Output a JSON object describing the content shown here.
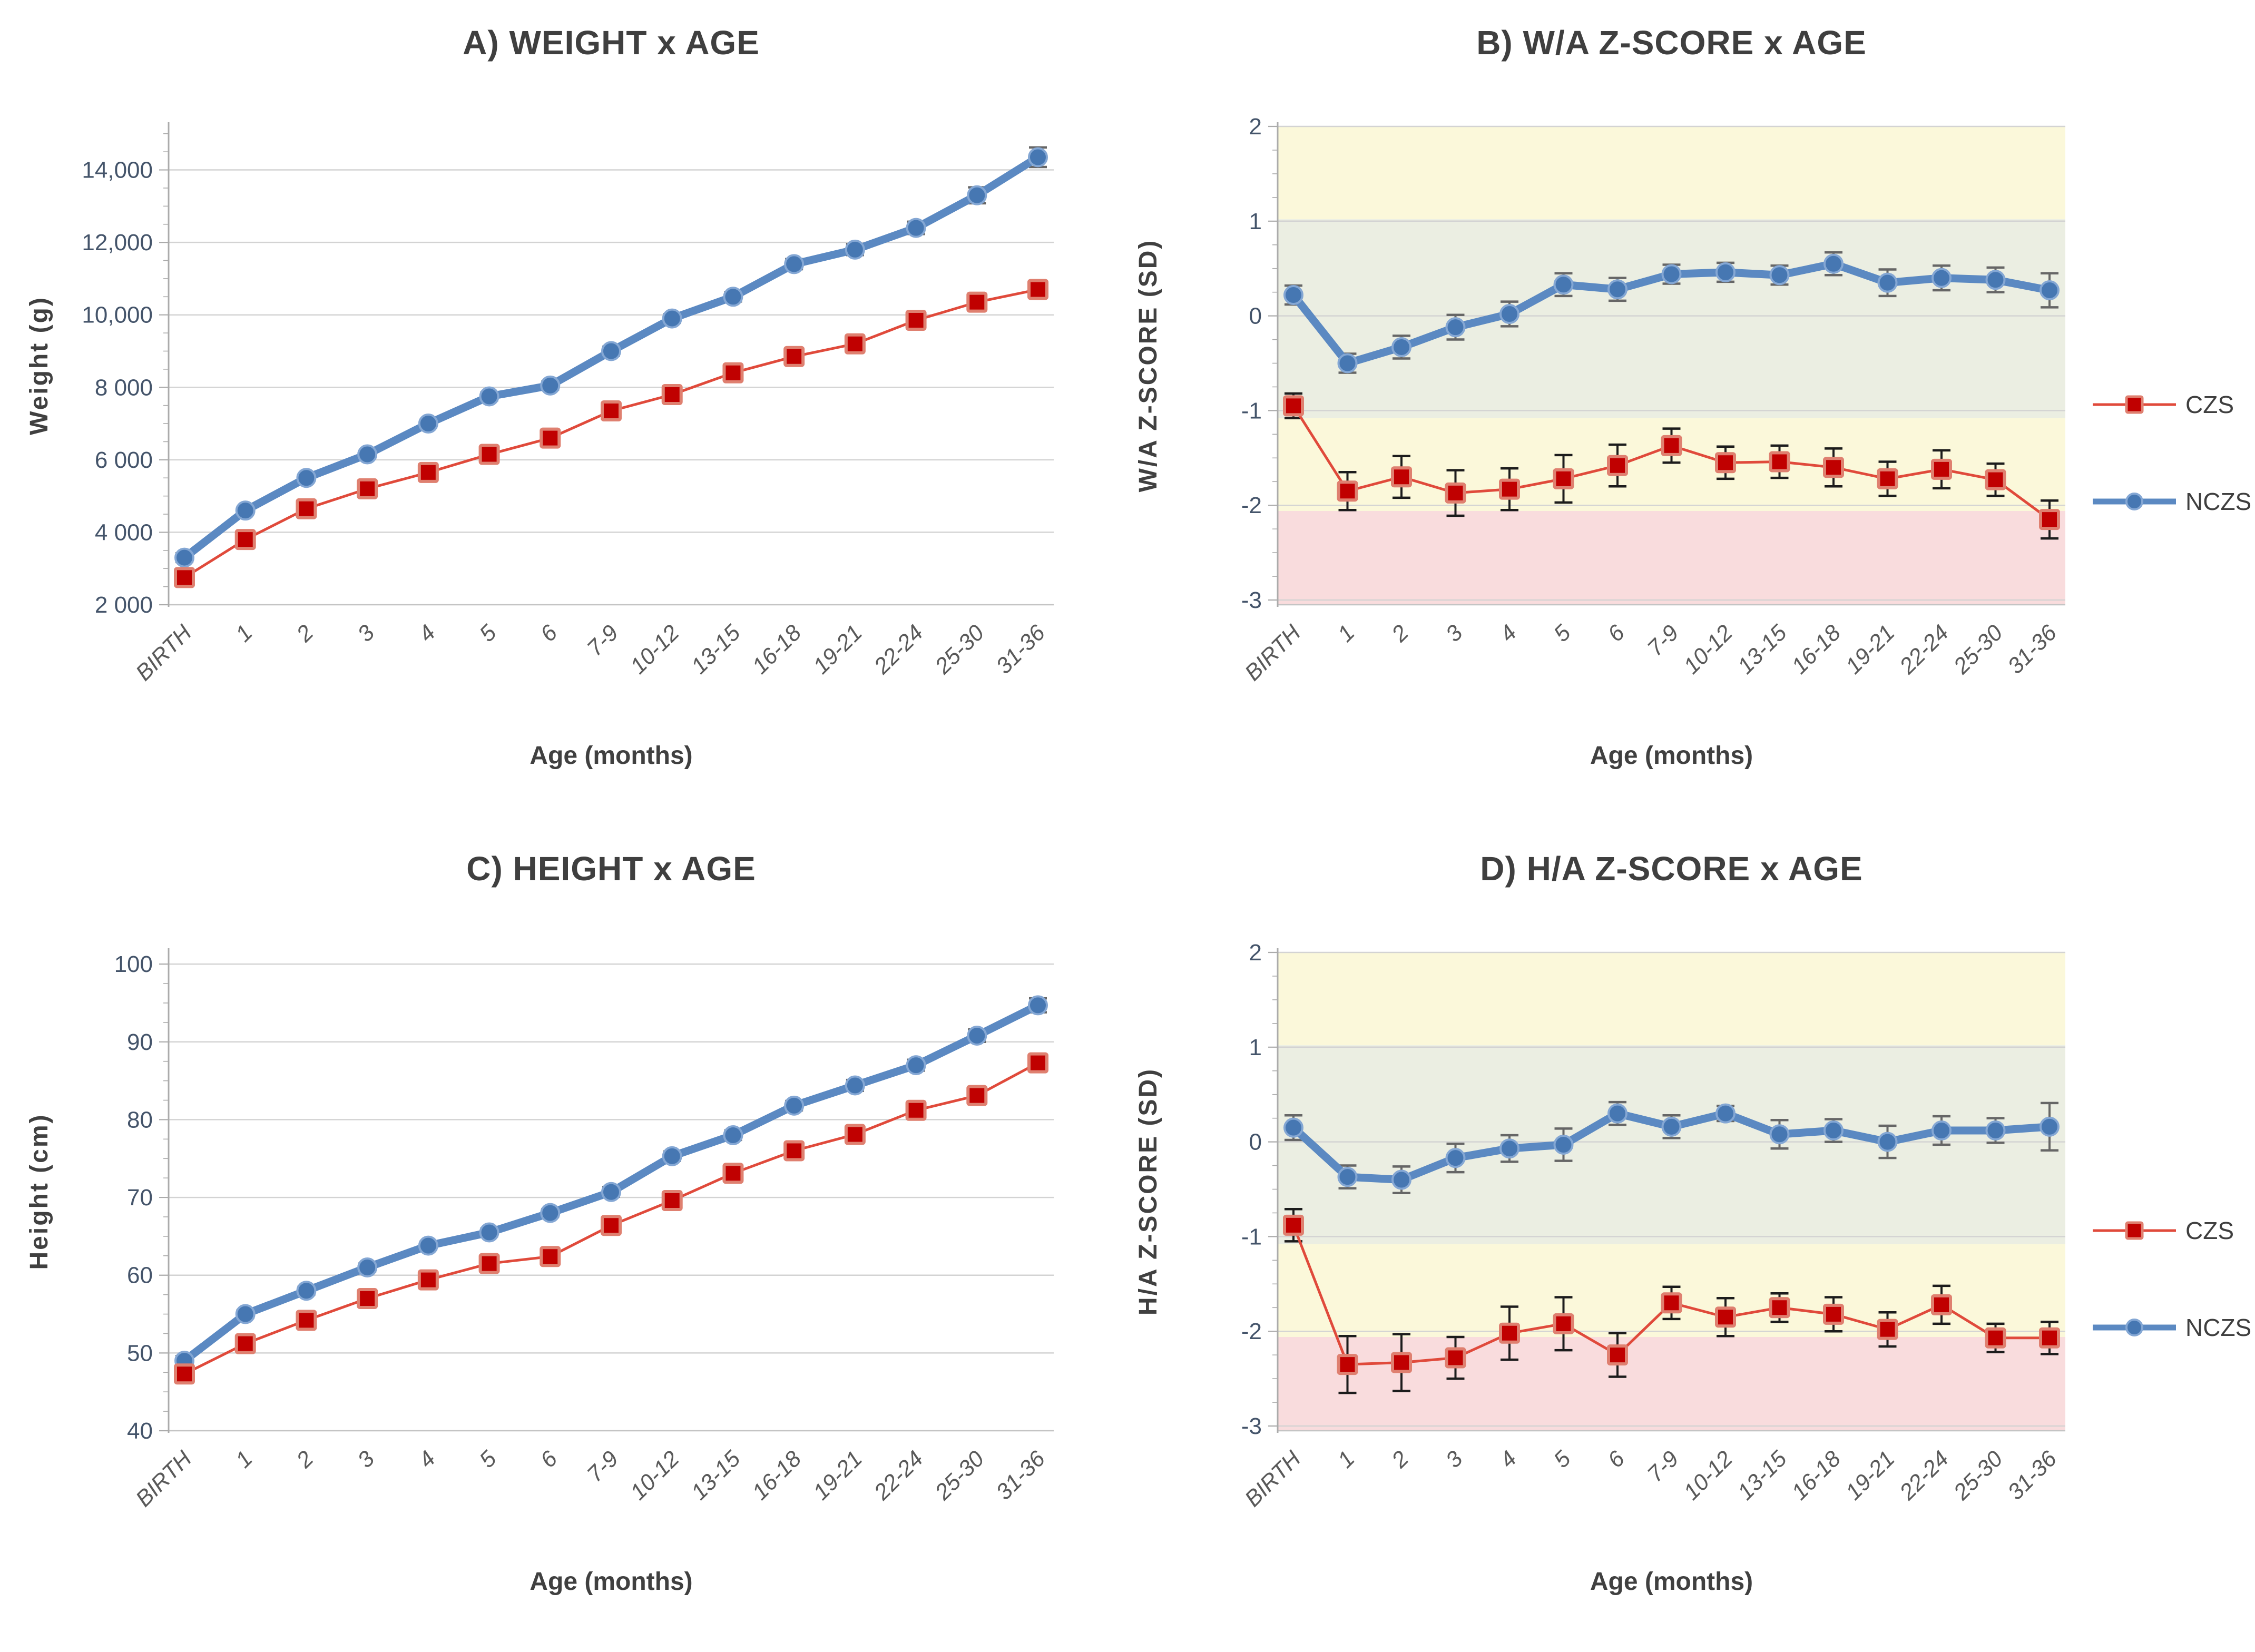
{
  "figure": {
    "legend": {
      "czs_label": "CZS",
      "nczs_label": "NCZS"
    },
    "colors": {
      "czs_line": "#E04A3B",
      "czs_fill": "#C00000",
      "czs_edge": "#DF8070",
      "nczs_line": "#5B89C2",
      "nczs_fill": "#4677B2",
      "nczs_edge": "#84A7D4",
      "czs_error": "#1C1C1C",
      "nczs_error": "#666666",
      "grid": "#D3D3D3",
      "axis": "#ABABAB",
      "title_text": "#3F3F3F",
      "y_tick_text": "#44546A",
      "x_tick_text": "#595959",
      "axis_title_text": "#404040",
      "band_yellow": "#FBF8DA",
      "band_green": "#EBEEE2",
      "band_pink": "#F9DCDD"
    }
  },
  "chart_data": [
    {
      "id": "A",
      "type": "line",
      "title": "A) WEIGHT x AGE",
      "xlabel": "Age (months)",
      "ylabel": "Weight (g)",
      "categories": [
        "BIRTH",
        "1",
        "2",
        "3",
        "4",
        "5",
        "6",
        "7-9",
        "10-12",
        "13-15",
        "16-18",
        "19-21",
        "22-24",
        "25-30",
        "31-36"
      ],
      "ylim": [
        2000,
        15200
      ],
      "y_tick_values": [
        2000,
        4000,
        6000,
        8000,
        10000,
        12000,
        14000
      ],
      "y_tick_labels": [
        "2 000",
        "4 000",
        "6 000",
        "8 000",
        "10,000",
        "12,000",
        "14,000"
      ],
      "grid_values": [
        4000,
        6000,
        8000,
        10000,
        12000,
        14000
      ],
      "minor_tick_step": 500,
      "bands": [],
      "legend_visible": false,
      "series": [
        {
          "name": "NCZS",
          "marker": "circle",
          "values": [
            3300,
            4600,
            5500,
            6150,
            7000,
            7750,
            8050,
            9000,
            9900,
            10500,
            11400,
            11800,
            12400,
            13300,
            14350
          ],
          "errors": [
            120,
            90,
            90,
            90,
            100,
            110,
            110,
            120,
            120,
            130,
            140,
            150,
            170,
            220,
            270
          ]
        },
        {
          "name": "CZS",
          "marker": "square",
          "values": [
            2750,
            3800,
            4650,
            5200,
            5650,
            6150,
            6600,
            7350,
            7800,
            8400,
            8850,
            9200,
            9850,
            10350,
            10700
          ],
          "errors": [
            60,
            70,
            80,
            80,
            80,
            90,
            90,
            90,
            100,
            100,
            110,
            110,
            120,
            130,
            140
          ]
        }
      ]
    },
    {
      "id": "B",
      "type": "line",
      "title": "B) W/A Z-SCORE x AGE",
      "xlabel": "Age (months)",
      "ylabel": "W/A Z-SCORE (SD)",
      "categories": [
        "BIRTH",
        "1",
        "2",
        "3",
        "4",
        "5",
        "6",
        "7-9",
        "10-12",
        "13-15",
        "16-18",
        "19-21",
        "22-24",
        "25-30",
        "31-36"
      ],
      "ylim": [
        -3.05,
        2.0
      ],
      "y_tick_values": [
        2,
        1,
        0,
        -1,
        -2,
        -3
      ],
      "y_tick_labels": [
        "2",
        "1",
        "0",
        "-1",
        "-2",
        "-3"
      ],
      "grid_values": [
        2,
        1,
        0,
        -1,
        -2,
        -3
      ],
      "minor_tick_step": 0.25,
      "bands": [
        {
          "from": 1.02,
          "to": 2.0,
          "color": "#FBF8DA"
        },
        {
          "from": -1.08,
          "to": 1.02,
          "color": "#EBEEE2"
        },
        {
          "from": -2.06,
          "to": -1.08,
          "color": "#FBF8DA"
        },
        {
          "from": -3.05,
          "to": -2.06,
          "color": "#F9DCDD"
        }
      ],
      "legend_visible": true,
      "series": [
        {
          "name": "NCZS",
          "marker": "circle",
          "values": [
            0.22,
            -0.5,
            -0.33,
            -0.12,
            0.02,
            0.33,
            0.28,
            0.44,
            0.46,
            0.43,
            0.55,
            0.35,
            0.4,
            0.38,
            0.27
          ],
          "errors": [
            0.1,
            0.1,
            0.12,
            0.13,
            0.13,
            0.12,
            0.12,
            0.1,
            0.1,
            0.1,
            0.12,
            0.14,
            0.13,
            0.13,
            0.18
          ]
        },
        {
          "name": "CZS",
          "marker": "square",
          "values": [
            -0.95,
            -1.85,
            -1.7,
            -1.87,
            -1.83,
            -1.72,
            -1.58,
            -1.37,
            -1.55,
            -1.54,
            -1.6,
            -1.72,
            -1.62,
            -1.73,
            -2.15
          ],
          "errors": [
            0.13,
            0.2,
            0.22,
            0.24,
            0.22,
            0.25,
            0.22,
            0.18,
            0.17,
            0.17,
            0.2,
            0.18,
            0.2,
            0.17,
            0.2
          ]
        }
      ]
    },
    {
      "id": "C",
      "type": "line",
      "title": "C) HEIGHT x AGE",
      "xlabel": "Age (months)",
      "ylabel": "Height (cm)",
      "categories": [
        "BIRTH",
        "1",
        "2",
        "3",
        "4",
        "5",
        "6",
        "7-9",
        "10-12",
        "13-15",
        "16-18",
        "19-21",
        "22-24",
        "25-30",
        "31-36"
      ],
      "ylim": [
        40,
        101.5
      ],
      "y_tick_values": [
        40,
        50,
        60,
        70,
        80,
        90,
        100
      ],
      "y_tick_labels": [
        "40",
        "50",
        "60",
        "70",
        "80",
        "90",
        "100"
      ],
      "grid_values": [
        50,
        60,
        70,
        80,
        90,
        100
      ],
      "minor_tick_step": 2.5,
      "bands": [],
      "legend_visible": false,
      "series": [
        {
          "name": "NCZS",
          "marker": "circle",
          "values": [
            49.0,
            55.0,
            58.0,
            61.0,
            63.8,
            65.5,
            68.0,
            70.7,
            75.3,
            78.0,
            81.8,
            84.4,
            87.0,
            90.8,
            94.7
          ],
          "errors": [
            0.6,
            0.5,
            0.5,
            0.5,
            0.5,
            0.5,
            0.5,
            0.6,
            0.6,
            0.6,
            0.6,
            0.7,
            0.7,
            0.8,
            0.9
          ]
        },
        {
          "name": "CZS",
          "marker": "square",
          "values": [
            47.3,
            51.2,
            54.2,
            57.0,
            59.4,
            61.5,
            62.4,
            66.4,
            69.6,
            73.1,
            76.0,
            78.1,
            81.2,
            83.1,
            87.3
          ],
          "errors": [
            0.5,
            0.5,
            0.5,
            0.5,
            0.5,
            0.5,
            0.5,
            0.5,
            0.5,
            0.5,
            0.5,
            0.5,
            0.5,
            0.5,
            0.6
          ]
        }
      ]
    },
    {
      "id": "D",
      "type": "line",
      "title": "D) H/A Z-SCORE x AGE",
      "xlabel": "Age (months)",
      "ylabel": "H/A Z-SCORE (SD)",
      "categories": [
        "BIRTH",
        "1",
        "2",
        "3",
        "4",
        "5",
        "6",
        "7-9",
        "10-12",
        "13-15",
        "16-18",
        "19-21",
        "22-24",
        "25-30",
        "31-36"
      ],
      "ylim": [
        -3.05,
        2.0
      ],
      "y_tick_values": [
        2,
        1,
        0,
        -1,
        -2,
        -3
      ],
      "y_tick_labels": [
        "2",
        "1",
        "0",
        "-1",
        "-2",
        "-3"
      ],
      "grid_values": [
        2,
        1,
        0,
        -1,
        -2,
        -3
      ],
      "minor_tick_step": 0.25,
      "bands": [
        {
          "from": 1.02,
          "to": 2.0,
          "color": "#FBF8DA"
        },
        {
          "from": -1.08,
          "to": 1.02,
          "color": "#EBEEE2"
        },
        {
          "from": -2.06,
          "to": -1.08,
          "color": "#FBF8DA"
        },
        {
          "from": -3.05,
          "to": -2.06,
          "color": "#F9DCDD"
        }
      ],
      "legend_visible": true,
      "series": [
        {
          "name": "NCZS",
          "marker": "circle",
          "values": [
            0.15,
            -0.37,
            -0.4,
            -0.17,
            -0.07,
            -0.03,
            0.3,
            0.16,
            0.3,
            0.08,
            0.12,
            0.0,
            0.12,
            0.12,
            0.16
          ],
          "errors": [
            0.13,
            0.12,
            0.14,
            0.15,
            0.14,
            0.17,
            0.12,
            0.12,
            0.08,
            0.15,
            0.12,
            0.17,
            0.15,
            0.13,
            0.25
          ]
        },
        {
          "name": "CZS",
          "marker": "square",
          "values": [
            -0.88,
            -2.35,
            -2.33,
            -2.28,
            -2.02,
            -1.92,
            -2.25,
            -1.7,
            -1.85,
            -1.75,
            -1.82,
            -1.98,
            -1.72,
            -2.07,
            -2.07
          ],
          "errors": [
            0.17,
            0.3,
            0.3,
            0.22,
            0.28,
            0.28,
            0.23,
            0.17,
            0.2,
            0.15,
            0.18,
            0.18,
            0.2,
            0.15,
            0.17
          ]
        }
      ]
    }
  ]
}
